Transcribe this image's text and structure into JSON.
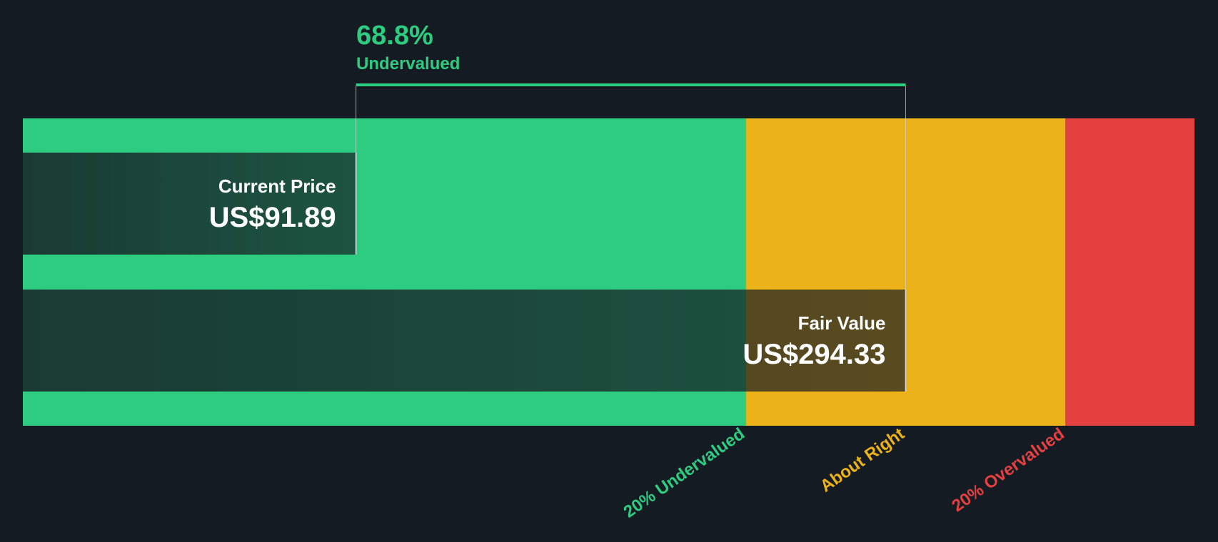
{
  "chart_data": {
    "type": "valuation",
    "headline": {
      "value": "68.8%",
      "label": "Undervalued"
    },
    "categories": [
      "Current Price",
      "Fair Value"
    ],
    "values": [
      91.89,
      294.33
    ],
    "value_labels": [
      "US$91.89",
      "US$294.33"
    ],
    "xlim": [
      -30.8,
      400.7
    ],
    "zone_breaks": [
      235.46,
      353.2
    ],
    "zone_colors": [
      "#2ecc80",
      "#ecb21a",
      "#e54040"
    ],
    "zone_labels": [
      {
        "text": "20% Undervalued",
        "value": 235.46,
        "color": "#2ecc80"
      },
      {
        "text": "About Right",
        "value": 294.33,
        "color": "#ecb21a"
      },
      {
        "text": "20% Overvalued",
        "value": 353.2,
        "color": "#e54040"
      }
    ]
  }
}
